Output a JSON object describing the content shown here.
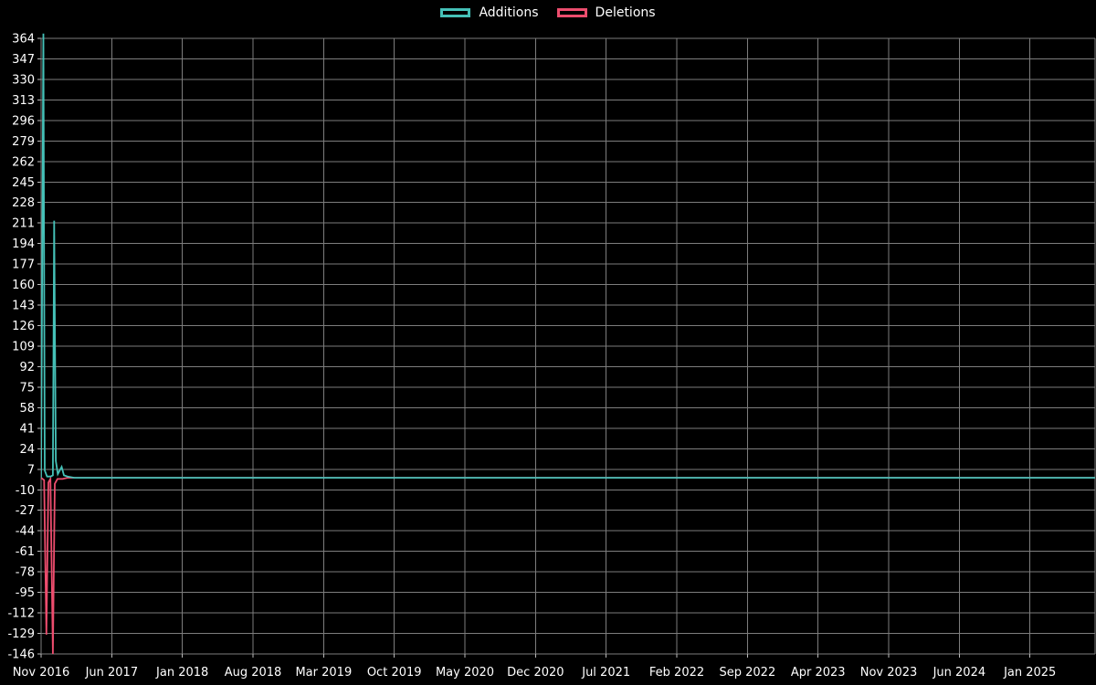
{
  "chart_data": {
    "type": "line",
    "title": "",
    "background_color": "#000000",
    "grid": true,
    "grid_color": "#7d7d7d",
    "tick_color": "#bbbbbb",
    "axis_text_color": "#ffffff",
    "legend_position": "top-center",
    "legend": [
      {
        "label": "Additions",
        "color": "#45c1b8"
      },
      {
        "label": "Deletions",
        "color": "#ed4d6e"
      }
    ],
    "x_axis": {
      "tick_labels": [
        "Nov 2016",
        "Jun 2017",
        "Jan 2018",
        "Aug 2018",
        "Mar 2019",
        "Oct 2019",
        "May 2020",
        "Dec 2020",
        "Jul 2021",
        "Feb 2022",
        "Sep 2022",
        "Apr 2023",
        "Nov 2023",
        "Jun 2024",
        "Jan 2025"
      ],
      "tick_interval_months": 7,
      "start_date": "2016-11-01",
      "end_date": "2025-07-16"
    },
    "y_axis": {
      "tick_labels": [
        364,
        347,
        330,
        313,
        296,
        279,
        262,
        245,
        228,
        211,
        194,
        177,
        160,
        143,
        126,
        109,
        92,
        75,
        58,
        41,
        24,
        7,
        -10,
        -27,
        -44,
        -61,
        -78,
        -95,
        -112,
        -129,
        -146
      ],
      "min": -146,
      "max": 368
    },
    "series": [
      {
        "name": "Additions",
        "color": "#45c1b8",
        "points": [
          [
            "2016-11-01",
            0
          ],
          [
            "2016-11-08",
            368
          ],
          [
            "2016-11-12",
            6
          ],
          [
            "2016-11-19",
            1
          ],
          [
            "2016-11-30",
            1
          ],
          [
            "2016-12-06",
            2
          ],
          [
            "2016-12-10",
            213
          ],
          [
            "2016-12-15",
            14
          ],
          [
            "2016-12-21",
            3
          ],
          [
            "2017-01-02",
            9
          ],
          [
            "2017-01-09",
            2
          ],
          [
            "2017-01-20",
            1
          ],
          [
            "2017-02-10",
            0
          ],
          [
            "2025-07-16",
            0
          ]
        ]
      },
      {
        "name": "Deletions",
        "color": "#ed4d6e",
        "points": [
          [
            "2016-11-01",
            0
          ],
          [
            "2016-11-10",
            -2
          ],
          [
            "2016-11-17",
            -130
          ],
          [
            "2016-11-23",
            -4
          ],
          [
            "2016-11-29",
            -1
          ],
          [
            "2016-12-06",
            -146
          ],
          [
            "2016-12-12",
            -5
          ],
          [
            "2016-12-20",
            -1
          ],
          [
            "2017-01-05",
            -1
          ],
          [
            "2017-01-20",
            0
          ],
          [
            "2025-07-16",
            0
          ]
        ]
      }
    ]
  }
}
